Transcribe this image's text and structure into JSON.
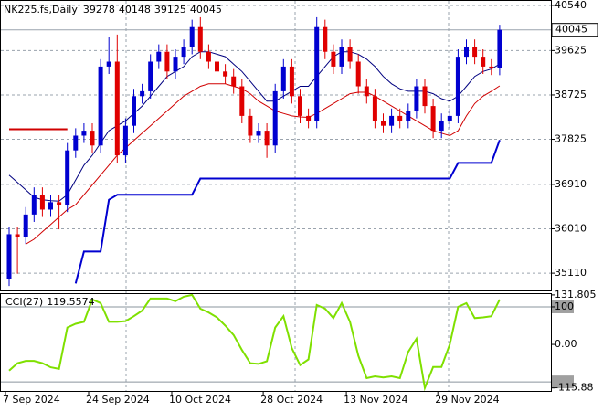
{
  "chart_data": {
    "type": "candlestick",
    "title": "NK225.fs,Daily",
    "categories": [
      "7 Sep 2024",
      null,
      null,
      null,
      null,
      null,
      null,
      null,
      null,
      null,
      "24 Sep 2024",
      null,
      null,
      null,
      null,
      null,
      null,
      null,
      null,
      null,
      "10 Oct 2024",
      null,
      null,
      null,
      null,
      null,
      null,
      null,
      null,
      null,
      null,
      "28 Oct 2024",
      null,
      null,
      null,
      null,
      null,
      null,
      null,
      null,
      null,
      "13 Nov 2024",
      null,
      null,
      null,
      null,
      null,
      null,
      null,
      null,
      null,
      null,
      "29 Nov 2024",
      null,
      null,
      null,
      null,
      null,
      null,
      null
    ],
    "open": [
      35000,
      35900,
      35850,
      36300,
      36700,
      36400,
      36550,
      36500,
      37600,
      37900,
      38000,
      37700,
      39300,
      39400,
      37500,
      38100,
      38700,
      38800,
      39400,
      39600,
      39200,
      39500,
      39700,
      40100,
      39600,
      39400,
      39200,
      39100,
      38900,
      38300,
      37900,
      38000,
      37700,
      38800,
      39300,
      38700,
      38300,
      38200,
      40100,
      39600,
      39300,
      39700,
      39400,
      38900,
      38700,
      38200,
      38100,
      38300,
      38200,
      38400,
      38900,
      38500,
      38000,
      38200,
      38300,
      39500,
      39700,
      39500,
      39300,
      39278
    ],
    "high": [
      36050,
      36050,
      36450,
      36850,
      36850,
      36700,
      36700,
      37750,
      38050,
      38150,
      38150,
      39450,
      39900,
      39950,
      38250,
      38850,
      38950,
      39550,
      39750,
      39750,
      39650,
      39850,
      40250,
      40300,
      39750,
      39550,
      39350,
      39250,
      39050,
      38450,
      38150,
      38150,
      38950,
      39450,
      39450,
      38850,
      38450,
      40300,
      40250,
      39750,
      39850,
      39850,
      39550,
      39050,
      38850,
      38350,
      38450,
      38450,
      38550,
      39050,
      39050,
      38650,
      38350,
      38450,
      39650,
      39850,
      39850,
      39650,
      39450,
      40148
    ],
    "low": [
      34850,
      35100,
      35700,
      36150,
      36250,
      36250,
      36000,
      36350,
      37450,
      37750,
      37550,
      37550,
      39150,
      37350,
      37350,
      37950,
      38550,
      38650,
      39250,
      39050,
      39050,
      39350,
      39550,
      39450,
      39250,
      39050,
      38950,
      38750,
      38150,
      37750,
      37750,
      37450,
      37550,
      38650,
      38550,
      38150,
      38050,
      38050,
      39450,
      39150,
      39150,
      39250,
      38750,
      38550,
      38050,
      37950,
      37950,
      38050,
      38050,
      38250,
      38350,
      37850,
      37850,
      38050,
      38150,
      39350,
      39350,
      39150,
      39128,
      39125
    ],
    "close": [
      35900,
      35850,
      36300,
      36700,
      36400,
      36550,
      36500,
      37600,
      37900,
      38000,
      37700,
      39300,
      39400,
      37500,
      38100,
      38700,
      38800,
      39400,
      39600,
      39200,
      39500,
      39700,
      40100,
      39600,
      39400,
      39200,
      39100,
      38900,
      38300,
      37900,
      38000,
      37700,
      38800,
      39300,
      38700,
      38300,
      38200,
      40100,
      39600,
      39300,
      39700,
      39400,
      38900,
      38700,
      38200,
      38100,
      38300,
      38200,
      38400,
      38900,
      38500,
      38000,
      38200,
      38300,
      39500,
      39700,
      39500,
      39300,
      39278,
      40045
    ],
    "up_color": "#0000d0",
    "down_color": "#e00000",
    "overlays": [
      {
        "color": "#000080",
        "values": [
          37100,
          36950,
          36800,
          36650,
          36600,
          36580,
          36570,
          36700,
          37000,
          37300,
          37500,
          37750,
          38000,
          38100,
          38200,
          38350,
          38500,
          38700,
          38900,
          39100,
          39200,
          39300,
          39500,
          39600,
          39600,
          39550,
          39500,
          39350,
          39200,
          39000,
          38800,
          38600,
          38600,
          38700,
          38800,
          38900,
          38900,
          39100,
          39300,
          39500,
          39600,
          39600,
          39550,
          39450,
          39300,
          39100,
          38950,
          38850,
          38800,
          38800,
          38800,
          38750,
          38650,
          38600,
          38700,
          38900,
          39100,
          39200,
          39250,
          39350
        ]
      },
      {
        "color": "#d00000",
        "values": [
          null,
          null,
          35700,
          35800,
          35950,
          36100,
          36250,
          36400,
          36500,
          36700,
          36900,
          37100,
          37300,
          37500,
          37650,
          37800,
          37950,
          38100,
          38250,
          38400,
          38550,
          38700,
          38800,
          38900,
          38950,
          38950,
          38950,
          38900,
          38850,
          38750,
          38600,
          38500,
          38400,
          38350,
          38300,
          38280,
          38270,
          38350,
          38450,
          38550,
          38650,
          38750,
          38780,
          38780,
          38700,
          38600,
          38500,
          38400,
          38300,
          38200,
          38100,
          38000,
          37950,
          37900,
          38000,
          38300,
          38550,
          38700,
          38800,
          38910
        ]
      },
      {
        "color": "#d00000",
        "values": [
          38030,
          38030,
          38030,
          38030,
          38030,
          38030,
          38030,
          38030,
          null,
          null,
          null,
          null,
          null,
          null,
          null,
          null,
          null,
          null,
          null,
          null,
          null,
          null,
          null,
          null,
          null,
          null,
          null,
          null,
          null,
          null,
          null,
          null,
          null,
          null,
          null,
          null,
          null,
          null,
          null,
          null,
          null,
          null,
          null,
          null,
          null,
          null,
          null,
          null,
          null,
          null,
          null,
          null,
          null,
          null,
          null,
          null,
          null,
          null,
          null,
          null
        ]
      },
      {
        "color": "#0000d0",
        "values": [
          null,
          null,
          null,
          null,
          null,
          null,
          null,
          null,
          34900,
          35550,
          35550,
          35550,
          36600,
          36700,
          36700,
          36700,
          36700,
          36700,
          36700,
          36700,
          36700,
          36700,
          36700,
          37030,
          37030,
          37030,
          37030,
          37030,
          37030,
          37030,
          37030,
          37030,
          37030,
          37030,
          37030,
          37030,
          37030,
          37030,
          37030,
          37030,
          37030,
          37030,
          37030,
          37030,
          37030,
          37030,
          37030,
          37030,
          37030,
          37030,
          37030,
          37030,
          37030,
          37030,
          37345,
          37345,
          37345,
          37345,
          37345,
          37810
        ]
      }
    ],
    "ylim": [
      34760,
      40632
    ],
    "yticks": [
      40540,
      39625,
      38725,
      37825,
      36910,
      36010,
      35110
    ],
    "grid": true,
    "indicator": {
      "name": "CCI(27)",
      "color": "#7fe000",
      "values": [
        -70,
        -50,
        -44,
        -44,
        -50,
        -61,
        -65,
        45,
        55,
        60,
        120,
        110,
        60,
        60,
        62,
        75,
        90,
        122,
        122,
        122,
        115,
        127,
        131.805,
        95,
        85,
        72,
        50,
        25,
        -15,
        -50,
        -52,
        -45,
        45,
        75,
        -10,
        -55,
        -40,
        105,
        95,
        70,
        110,
        60,
        -30,
        -90,
        -85,
        -88,
        -85,
        -90,
        -20,
        15,
        -115.88,
        -60,
        -60,
        0,
        100,
        110,
        70,
        72,
        75,
        119.5574
      ],
      "ylim": [
        -124,
        134
      ],
      "yticks": [
        131.805,
        100,
        {
          "value": 0,
          "label": "0.00"
        },
        -115.88
      ],
      "levels": [
        100,
        -100
      ]
    }
  }
}
